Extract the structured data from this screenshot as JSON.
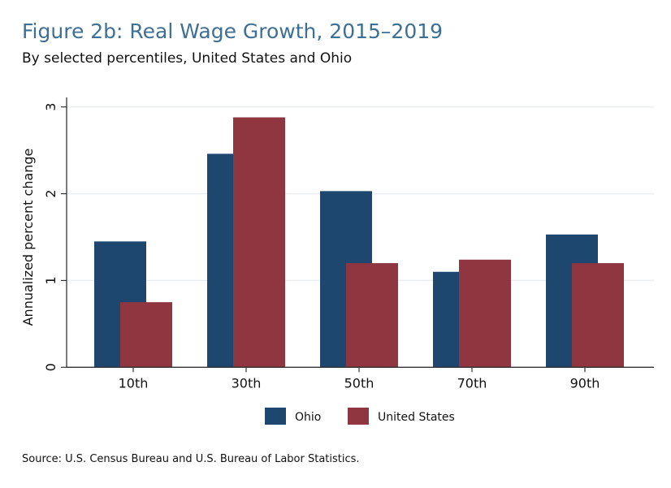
{
  "title": "Figure 2b: Real Wage Growth, 2015–2019",
  "subtitle": "By selected percentiles, United States and Ohio",
  "source": "Source: U.S. Census Bureau and U.S. Bureau of Labor Statistics.",
  "chart_data": {
    "type": "bar",
    "categories": [
      "10th",
      "30th",
      "50th",
      "70th",
      "90th"
    ],
    "series": [
      {
        "name": "Ohio",
        "color": "#1d476e",
        "values": [
          1.45,
          2.46,
          2.03,
          1.1,
          1.53
        ]
      },
      {
        "name": "United States",
        "color": "#8f3640",
        "values": [
          0.75,
          2.88,
          1.2,
          1.24,
          1.2
        ]
      }
    ],
    "ylabel": "Annualized percent change",
    "xlabel": "",
    "ylim": [
      0,
      3
    ],
    "yticks": [
      0,
      1,
      2,
      3
    ],
    "grid": true,
    "legend": "bottom"
  }
}
